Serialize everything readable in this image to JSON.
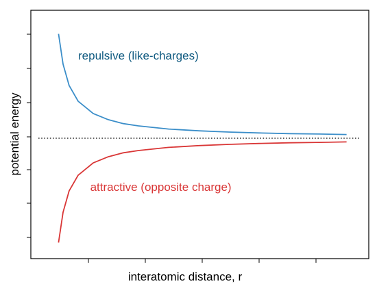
{
  "chart_data": {
    "type": "line",
    "title": "",
    "xlabel": "interatomic distance, r",
    "ylabel": "potential energy",
    "grid": false,
    "legend": "none",
    "x_ticks_count": 5,
    "y_ticks_count": 7,
    "xlim": [
      0.0,
      1.0
    ],
    "ylim": [
      -1.0,
      1.0
    ],
    "zero_line": {
      "y": 0,
      "style": "dotted",
      "color": "#000000"
    },
    "series": [
      {
        "name": "repulsive (like-charges)",
        "color": "#3b8ec9",
        "x": [
          0.035,
          0.05,
          0.07,
          0.1,
          0.15,
          0.2,
          0.25,
          0.3,
          0.4,
          0.5,
          0.6,
          0.7,
          0.8,
          0.9,
          0.99
        ],
        "y": [
          0.93,
          0.66,
          0.47,
          0.33,
          0.22,
          0.165,
          0.13,
          0.11,
          0.082,
          0.066,
          0.055,
          0.047,
          0.041,
          0.037,
          0.033
        ]
      },
      {
        "name": "attractive (opposite charge)",
        "color": "#d93636",
        "x": [
          0.035,
          0.05,
          0.07,
          0.1,
          0.15,
          0.2,
          0.25,
          0.3,
          0.4,
          0.5,
          0.6,
          0.7,
          0.8,
          0.9,
          0.99
        ],
        "y": [
          -0.93,
          -0.66,
          -0.47,
          -0.33,
          -0.22,
          -0.165,
          -0.13,
          -0.11,
          -0.082,
          -0.066,
          -0.055,
          -0.047,
          -0.041,
          -0.037,
          -0.033
        ]
      }
    ],
    "annotations": [
      {
        "text": "repulsive (like-charges)",
        "color": "#0f5a80",
        "x": 0.1,
        "y": 0.7
      },
      {
        "text": "attractive (opposite charge)",
        "color": "#d93636",
        "x": 0.14,
        "y": -0.47
      }
    ]
  }
}
